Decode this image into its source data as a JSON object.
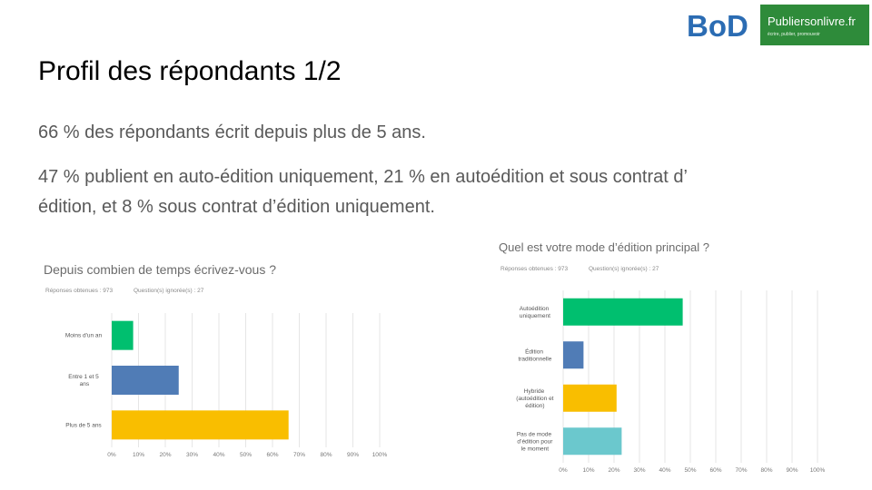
{
  "slide": {
    "title": "Profil des répondants 1/2",
    "paragraphs": [
      "66 % des répondants écrit depuis plus de 5 ans.",
      "47 % publient en auto-édition uniquement, 21 % en autoédition et sous contrat d’",
      "édition, et 8 % sous contrat d’édition uniquement."
    ],
    "logo_bod": "BoD",
    "logo_site": "Publiersonlivre.fr",
    "logo_tagline": "écrire, publier, promouvoir"
  },
  "chart_data": [
    {
      "type": "bar",
      "orientation": "horizontal",
      "title": "Depuis combien de temps écrivez-vous ?",
      "responses": "Réponses obtenues : 973",
      "skipped": "Question(s) ignorée(s) : 27",
      "categories": [
        "Moins d'un an",
        "Entre 1 et 5 ans",
        "Plus de 5 ans"
      ],
      "values": [
        8,
        25,
        66
      ],
      "colors": [
        "#00bf6f",
        "#507cb6",
        "#f9be00"
      ],
      "xlim": [
        0,
        100
      ],
      "grid": true,
      "xticks": [
        {
          "value": 0,
          "label": "0%"
        },
        {
          "value": 10,
          "label": "10%"
        },
        {
          "value": 20,
          "label": "20%"
        },
        {
          "value": 30,
          "label": "30%"
        },
        {
          "value": 40,
          "label": "40%"
        },
        {
          "value": 50,
          "label": "50%"
        },
        {
          "value": 60,
          "label": "60%"
        },
        {
          "value": 70,
          "label": "70%"
        },
        {
          "value": 80,
          "label": "80%"
        },
        {
          "value": 90,
          "label": "90%"
        },
        {
          "value": 100,
          "label": "100%"
        }
      ]
    },
    {
      "type": "bar",
      "orientation": "horizontal",
      "title": "Quel est votre mode d’édition principal ?",
      "responses": "Réponses obtenues : 973",
      "skipped": "Question(s) ignorée(s) : 27",
      "categories": [
        "Autoédition uniquement",
        "Édition traditionnelle",
        "Hybride (autoédition et édition)",
        "Pas de mode d’édition pour le moment"
      ],
      "values": [
        47,
        8,
        21,
        23
      ],
      "colors": [
        "#00bf6f",
        "#507cb6",
        "#f9be00",
        "#6bc8cd"
      ],
      "xlim": [
        0,
        100
      ],
      "grid": true,
      "xticks": [
        {
          "value": 0,
          "label": "0%"
        },
        {
          "value": 10,
          "label": "10%"
        },
        {
          "value": 20,
          "label": "20%"
        },
        {
          "value": 30,
          "label": "30%"
        },
        {
          "value": 40,
          "label": "40%"
        },
        {
          "value": 50,
          "label": "50%"
        },
        {
          "value": 60,
          "label": "60%"
        },
        {
          "value": 70,
          "label": "70%"
        },
        {
          "value": 80,
          "label": "80%"
        },
        {
          "value": 90,
          "label": "90%"
        },
        {
          "value": 100,
          "label": "100%"
        }
      ]
    }
  ]
}
